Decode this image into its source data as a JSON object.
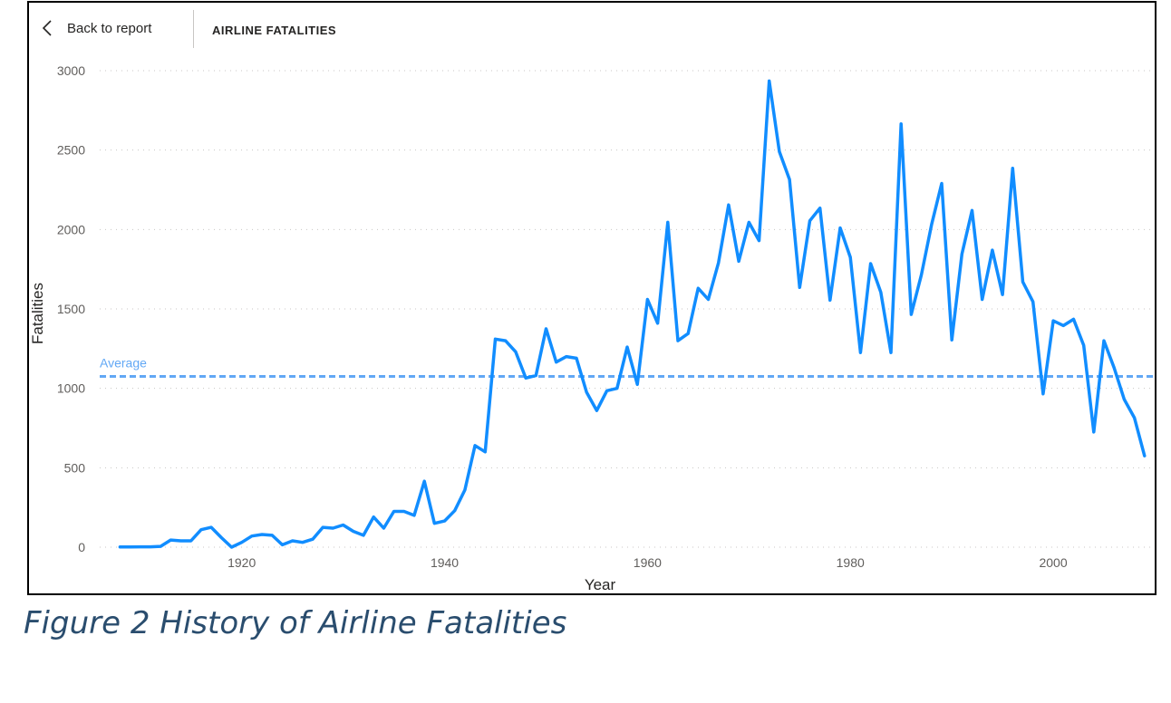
{
  "header": {
    "back_label": "Back to report",
    "title": "AIRLINE FATALITIES"
  },
  "icons": {
    "back": "chevron-left-icon"
  },
  "caption": "Figure 2 History of Airline Fatalities",
  "colors": {
    "line": "#118DFF",
    "average": "#62A8F5",
    "grid": "#C8C6C4",
    "axis_text": "#605E5C"
  },
  "chart_data": {
    "type": "line",
    "xlabel": "Year",
    "ylabel": "Fatalities",
    "xlim": [
      1906,
      2010
    ],
    "ylim": [
      0,
      3000
    ],
    "x_ticks": [
      1920,
      1940,
      1960,
      1980,
      2000
    ],
    "y_ticks": [
      0,
      500,
      1000,
      1500,
      2000,
      2500,
      3000
    ],
    "grid": true,
    "average_line": {
      "label": "Average",
      "value": 1075
    },
    "series": [
      {
        "x": [
          1908,
          1909,
          1910,
          1911,
          1912,
          1913,
          1914,
          1915,
          1916,
          1917,
          1918,
          1919,
          1920,
          1921,
          1922,
          1923,
          1924,
          1925,
          1926,
          1927,
          1928,
          1929,
          1930,
          1931,
          1932,
          1933,
          1934,
          1935,
          1936,
          1937,
          1938,
          1939,
          1940,
          1941,
          1942,
          1943,
          1944,
          1945,
          1946,
          1947,
          1948,
          1949,
          1950,
          1951,
          1952,
          1953,
          1954,
          1955,
          1956,
          1957,
          1958,
          1959,
          1960,
          1961,
          1962,
          1963,
          1964,
          1965,
          1966,
          1967,
          1968,
          1969,
          1970,
          1971,
          1972,
          1973,
          1974,
          1975,
          1976,
          1977,
          1978,
          1979,
          1980,
          1981,
          1982,
          1983,
          1984,
          1985,
          1986,
          1987,
          1988,
          1989,
          1990,
          1991,
          1992,
          1993,
          1994,
          1995,
          1996,
          1997,
          1998,
          1999,
          2000,
          2001,
          2002,
          2003,
          2004,
          2005,
          2006,
          2007,
          2008,
          2009
        ],
        "values": [
          1,
          1,
          2,
          2,
          5,
          45,
          40,
          40,
          110,
          125,
          60,
          0,
          30,
          70,
          80,
          75,
          15,
          40,
          30,
          50,
          125,
          120,
          140,
          100,
          75,
          190,
          120,
          225,
          225,
          200,
          415,
          150,
          165,
          230,
          360,
          640,
          600,
          1310,
          1300,
          1230,
          1065,
          1080,
          1375,
          1165,
          1200,
          1190,
          975,
          860,
          985,
          1000,
          1260,
          1025,
          1560,
          1410,
          2045,
          1300,
          1345,
          1630,
          1560,
          1790,
          2155,
          1800,
          2045,
          1930,
          2935,
          2490,
          2315,
          1635,
          2055,
          2135,
          1555,
          2010,
          1825,
          1225,
          1785,
          1605,
          1225,
          2665,
          1465,
          1715,
          2030,
          2290,
          1305,
          1845,
          2120,
          1560,
          1870,
          1590,
          2385,
          1670,
          1545,
          965,
          1425,
          1395,
          1435,
          1270,
          725,
          1300,
          1130,
          930,
          815,
          575
        ]
      }
    ]
  }
}
